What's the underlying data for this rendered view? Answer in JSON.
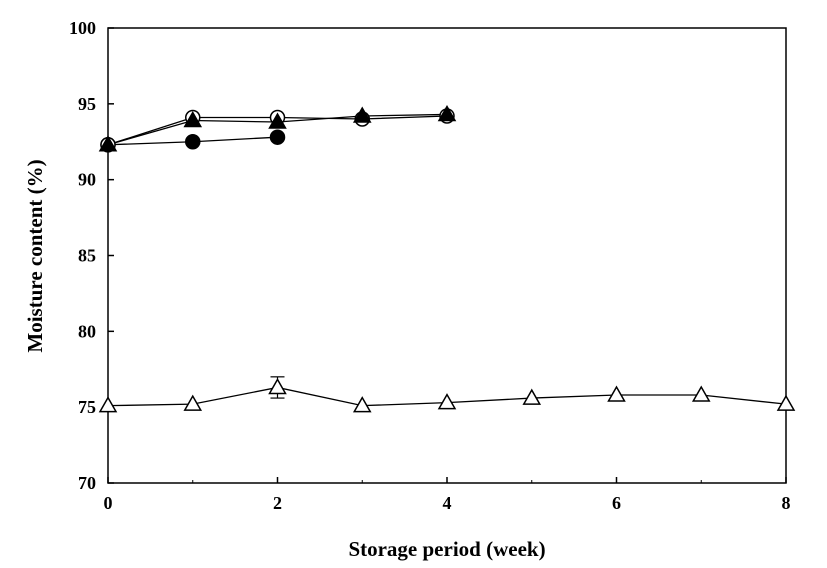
{
  "chart_data": {
    "type": "line",
    "title": "",
    "xlabel": "Storage period (week)",
    "ylabel": "Moisture content (%)",
    "xlim": [
      0,
      8
    ],
    "ylim": [
      70,
      100
    ],
    "x_ticks": [
      "0",
      "2",
      "4",
      "6",
      "8"
    ],
    "y_ticks": [
      "70",
      "75",
      "80",
      "85",
      "90",
      "95",
      "100"
    ],
    "x_tick_values": [
      0,
      2,
      4,
      6,
      8
    ],
    "y_tick_values": [
      70,
      75,
      80,
      85,
      90,
      95,
      100
    ],
    "grid": false,
    "legend": "none",
    "series": [
      {
        "marker": "circle-filled",
        "x": [
          0,
          1,
          2
        ],
        "y": [
          92.3,
          92.5,
          92.8
        ]
      },
      {
        "marker": "circle-open",
        "x": [
          0,
          1,
          2,
          3,
          4
        ],
        "y": [
          92.3,
          94.1,
          94.1,
          94.0,
          94.2
        ]
      },
      {
        "marker": "triangle-filled",
        "x": [
          0,
          1,
          2,
          3,
          4
        ],
        "y": [
          92.3,
          93.9,
          93.8,
          94.2,
          94.3
        ]
      },
      {
        "marker": "triangle-open",
        "x": [
          0,
          1,
          2,
          3,
          4,
          5,
          6,
          7,
          8
        ],
        "y": [
          75.1,
          75.2,
          76.3,
          75.1,
          75.3,
          75.6,
          75.8,
          75.8,
          75.2
        ],
        "error": [
          0,
          0,
          0.7,
          0,
          0,
          0,
          0,
          0,
          0
        ]
      }
    ]
  }
}
